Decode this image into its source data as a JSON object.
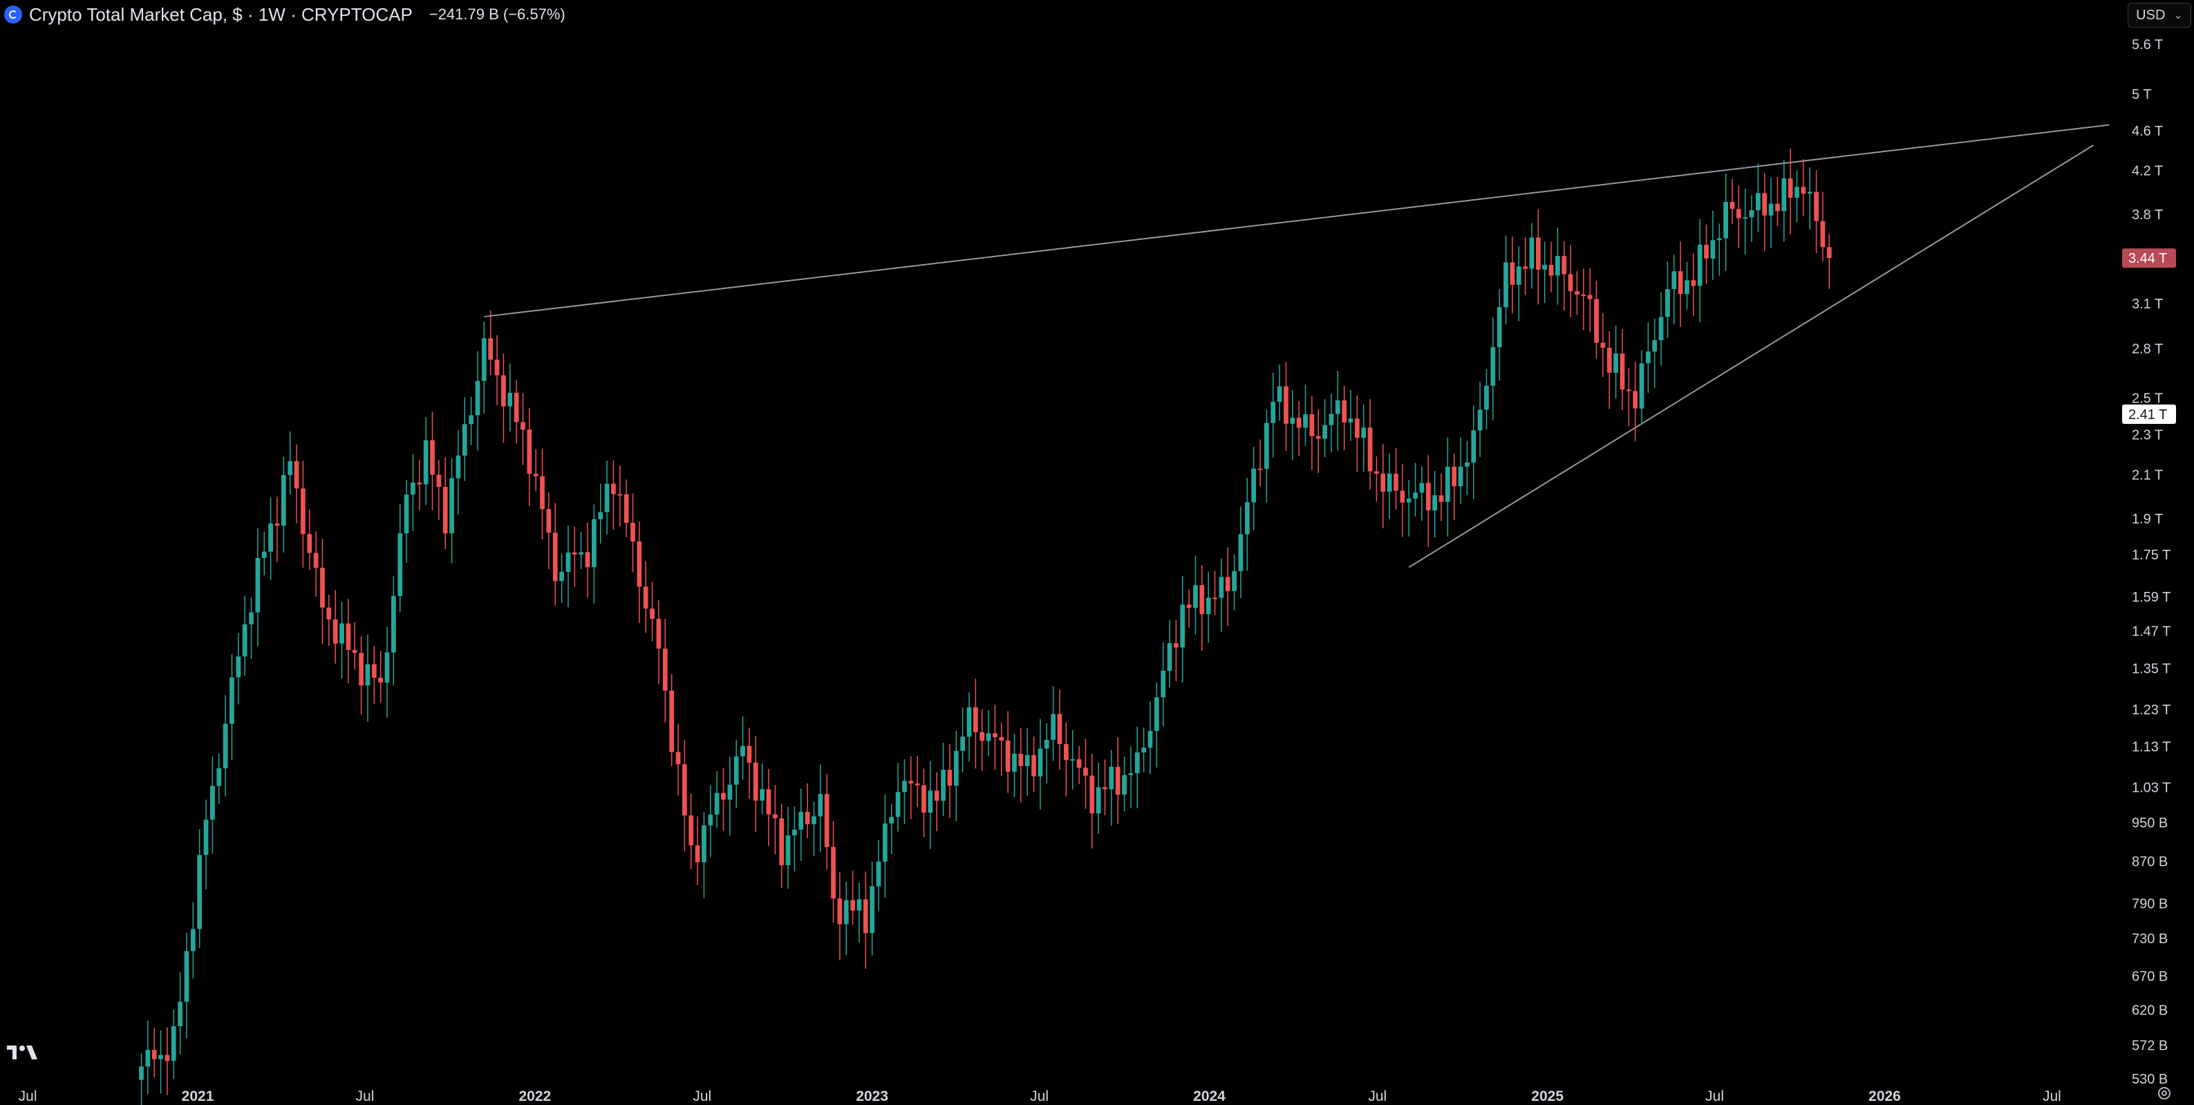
{
  "header": {
    "symbol_line": "Crypto Total Market Cap, $ · 1W · CRYPTOCAP",
    "change": "−241.79 B (−6.57%)"
  },
  "currency_selector": {
    "value": "USD"
  },
  "icons": {
    "logo": "cryptocap-logo-icon",
    "tradingview": "tradingview-logo-icon",
    "settings": "gear-icon",
    "dropdown": "chevron-down-icon"
  },
  "colors": {
    "up": "#26a69a",
    "down": "#ef5350",
    "background": "#000000",
    "trendline": "#9598a1",
    "last_price_badge": "#b84a55"
  },
  "chart_data": {
    "type": "candlestick",
    "interval": "1W",
    "y_scale": "log",
    "y_tick_labels": [
      "530 B",
      "572 B",
      "620 B",
      "670 B",
      "730 B",
      "790 B",
      "870 B",
      "950 B",
      "1.03 T",
      "1.13 T",
      "1.23 T",
      "1.35 T",
      "1.47 T",
      "1.59 T",
      "1.75 T",
      "1.9 T",
      "2.1 T",
      "2.3 T",
      "2.5 T",
      "2.8 T",
      "3.1 T",
      "3.8 T",
      "4.2 T",
      "4.6 T",
      "5 T",
      "5.6 T"
    ],
    "y_tick_values": [
      530,
      572,
      620,
      670,
      730,
      790,
      870,
      950,
      1030,
      1130,
      1230,
      1350,
      1470,
      1590,
      1750,
      1900,
      2100,
      2300,
      2500,
      2800,
      3100,
      3800,
      4200,
      4600,
      5000,
      5600
    ],
    "x_tick_labels": [
      "Jul",
      "2021",
      "Jul",
      "2022",
      "Jul",
      "2023",
      "Jul",
      "2024",
      "Jul",
      "2025",
      "Jul",
      "2026",
      "Jul"
    ],
    "x_tick_dates": [
      "2020-07-01",
      "2021-01-01",
      "2021-07-01",
      "2022-01-01",
      "2022-07-01",
      "2023-01-01",
      "2023-07-01",
      "2024-01-01",
      "2024-07-01",
      "2025-01-01",
      "2025-07-01",
      "2026-01-01",
      "2026-07-01"
    ],
    "x_range": [
      "2020-06-01",
      "2026-09-15"
    ],
    "last_price_label": "3.44 T",
    "last_price": 3440,
    "crosshair_label": "2.41 T",
    "crosshair_value": 2410,
    "units": "B",
    "anchors": [
      [
        "2020-11-01",
        545
      ],
      [
        "2020-12-06",
        575
      ],
      [
        "2021-01-10",
        950
      ],
      [
        "2021-02-21",
        1500
      ],
      [
        "2021-03-14",
        1770
      ],
      [
        "2021-04-11",
        2150
      ],
      [
        "2021-05-16",
        1550
      ],
      [
        "2021-06-20",
        1380
      ],
      [
        "2021-07-18",
        1290
      ],
      [
        "2021-08-15",
        2000
      ],
      [
        "2021-09-05",
        2200
      ],
      [
        "2021-09-26",
        1920
      ],
      [
        "2021-11-07",
        2800
      ],
      [
        "2021-11-28",
        2550
      ],
      [
        "2021-12-26",
        2200
      ],
      [
        "2022-01-23",
        1690
      ],
      [
        "2022-02-27",
        1770
      ],
      [
        "2022-03-27",
        2100
      ],
      [
        "2022-05-15",
        1400
      ],
      [
        "2022-06-19",
        880
      ],
      [
        "2022-08-14",
        1120
      ],
      [
        "2022-09-25",
        900
      ],
      [
        "2022-11-06",
        1000
      ],
      [
        "2022-11-20",
        790
      ],
      [
        "2022-12-25",
        770
      ],
      [
        "2023-01-29",
        1040
      ],
      [
        "2023-03-12",
        1000
      ],
      [
        "2023-04-16",
        1200
      ],
      [
        "2023-06-18",
        1070
      ],
      [
        "2023-07-16",
        1180
      ],
      [
        "2023-08-27",
        1010
      ],
      [
        "2023-10-15",
        1080
      ],
      [
        "2023-12-03",
        1550
      ],
      [
        "2024-01-21",
        1620
      ],
      [
        "2024-03-10",
        2500
      ],
      [
        "2024-04-21",
        2300
      ],
      [
        "2024-05-26",
        2450
      ],
      [
        "2024-07-07",
        2050
      ],
      [
        "2024-08-04",
        2000
      ],
      [
        "2024-09-08",
        2000
      ],
      [
        "2024-10-13",
        2250
      ],
      [
        "2024-11-17",
        3300
      ],
      [
        "2024-12-15",
        3450
      ],
      [
        "2025-01-12",
        3350
      ],
      [
        "2025-02-09",
        3150
      ],
      [
        "2025-03-09",
        2700
      ],
      [
        "2025-04-06",
        2500
      ],
      [
        "2025-05-11",
        3200
      ],
      [
        "2025-06-08",
        3300
      ],
      [
        "2025-07-13",
        3800
      ],
      [
        "2025-08-17",
        3850
      ],
      [
        "2025-09-14",
        3950
      ],
      [
        "2025-10-05",
        4100
      ],
      [
        "2025-10-19",
        3700
      ],
      [
        "2025-11-02",
        3440
      ]
    ],
    "trendlines": [
      {
        "from": [
          "2021-11-07",
          3010
        ],
        "to": [
          "2026-09-01",
          4660
        ]
      },
      {
        "from": [
          "2024-08-04",
          1700
        ],
        "to": [
          "2026-08-15",
          4450
        ]
      }
    ]
  }
}
